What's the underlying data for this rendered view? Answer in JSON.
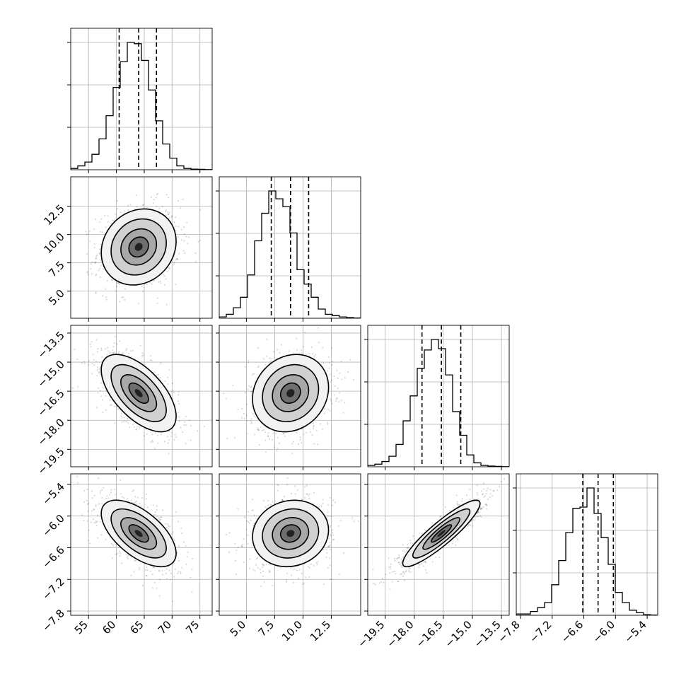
{
  "chart_data": {
    "type": "corner",
    "grid": true,
    "params": [
      {
        "range": [
          51.8,
          77.2
        ],
        "ticks": [
          "55",
          "60",
          "65",
          "70",
          "75"
        ],
        "tick_values": [
          55,
          60,
          65,
          70,
          75
        ],
        "quantiles": [
          60.5,
          64.0,
          67.2
        ],
        "mean": 64.0,
        "sd": 3.2,
        "hist": [
          1,
          3,
          6,
          12,
          24,
          42,
          64,
          84,
          99,
          98,
          85,
          62,
          38,
          20,
          9,
          3,
          1,
          0.5,
          0.3,
          0.1
        ]
      },
      {
        "range": [
          2.6,
          15.1
        ],
        "ticks": [
          "5.0",
          "7.5",
          "10.0",
          "12.5"
        ],
        "tick_values": [
          5.0,
          7.5,
          10.0,
          12.5
        ],
        "quantiles": [
          7.2,
          8.9,
          10.5
        ],
        "mean": 8.9,
        "sd": 1.6,
        "hist": [
          1,
          3,
          8,
          16,
          33,
          59,
          80,
          97,
          91,
          85,
          65,
          37,
          26,
          16,
          7,
          3,
          2,
          1,
          0.5,
          0.2
        ]
      },
      {
        "range": [
          -20.4,
          -13.1
        ],
        "ticks": [
          "-19.5",
          "-18.0",
          "-16.5",
          "-15.0",
          "-13.5"
        ],
        "tick_values": [
          -19.5,
          -18.0,
          -16.5,
          -15.0,
          -13.5
        ],
        "quantiles": [
          -17.6,
          -16.6,
          -15.6
        ],
        "mean": -16.6,
        "sd": 0.95,
        "hist": [
          1,
          2,
          4,
          8,
          17,
          35,
          54,
          75,
          89,
          97,
          90,
          70,
          42,
          24,
          9,
          3,
          1,
          0.5,
          0.3,
          0.1
        ]
      },
      {
        "range": [
          -7.88,
          -5.2
        ],
        "ticks": [
          "-7.8",
          "-7.2",
          "-6.6",
          "-6.0",
          "-5.4"
        ],
        "tick_values": [
          -7.8,
          -7.2,
          -6.6,
          -6.0,
          -5.4
        ],
        "quantiles": [
          -6.62,
          -6.33,
          -6.04
        ],
        "mean": -6.33,
        "sd": 0.3,
        "hist": [
          1,
          1,
          3,
          6,
          10,
          24,
          43,
          65,
          84,
          85,
          100,
          80,
          61,
          40,
          18,
          10,
          4,
          2,
          0.5,
          0.2
        ]
      }
    ],
    "correlations": [
      [
        1.0,
        0.15,
        -0.6,
        -0.6
      ],
      [
        0.15,
        1.0,
        0.15,
        0.1
      ],
      [
        -0.6,
        0.15,
        1.0,
        0.9
      ],
      [
        -0.6,
        0.1,
        0.9,
        1.0
      ]
    ]
  }
}
